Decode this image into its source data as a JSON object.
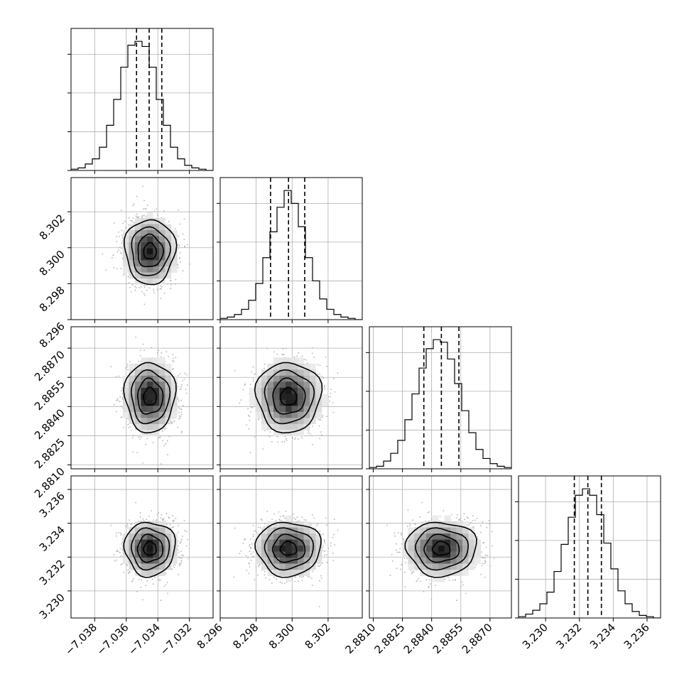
{
  "chart_data": {
    "type": "corner",
    "parameters": [
      {
        "index": 0,
        "range": [
          -7.0395,
          -7.0305
        ],
        "mean": -7.0345,
        "sd": 0.0008,
        "quantiles": [
          -7.03535,
          -7.03455,
          -7.03375
        ],
        "ticks": [
          -7.038,
          -7.036,
          -7.034,
          -7.032
        ],
        "tick_labels": [
          "−7.038",
          "−7.036",
          "−7.034",
          "−7.032"
        ]
      },
      {
        "index": 1,
        "range": [
          8.296,
          8.3039
        ],
        "mean": 8.2998,
        "sd": 0.0009,
        "quantiles": [
          8.2988,
          8.2998,
          8.3007
        ],
        "ticks": [
          8.296,
          8.298,
          8.3,
          8.302
        ],
        "tick_labels": [
          "8.296",
          "8.298",
          "8.300",
          "8.302"
        ]
      },
      {
        "index": 2,
        "range": [
          2.8808,
          2.8881
        ],
        "mean": 2.8845,
        "sd": 0.0009,
        "quantiles": [
          2.8836,
          2.8845,
          2.8854
        ],
        "ticks": [
          2.881,
          2.8825,
          2.884,
          2.8855,
          2.887
        ],
        "tick_labels": [
          "2.8810",
          "2.8825",
          "2.8840",
          "2.8855",
          "2.8870"
        ]
      },
      {
        "index": 3,
        "range": [
          3.2284,
          3.2368
        ],
        "mean": 3.2325,
        "sd": 0.0008,
        "quantiles": [
          3.2317,
          3.2325,
          3.2333
        ],
        "ticks": [
          3.23,
          3.232,
          3.234,
          3.236
        ],
        "tick_labels": [
          "3.230",
          "3.232",
          "3.234",
          "3.236"
        ]
      }
    ],
    "histograms": [
      [
        0.01,
        0.02,
        0.05,
        0.09,
        0.18,
        0.35,
        0.55,
        0.8,
        0.97,
        1.0,
        0.96,
        0.8,
        0.55,
        0.35,
        0.18,
        0.09,
        0.04,
        0.02,
        0.01,
        0.0
      ],
      [
        0.01,
        0.02,
        0.04,
        0.08,
        0.15,
        0.28,
        0.48,
        0.68,
        0.87,
        1.0,
        0.9,
        0.72,
        0.48,
        0.3,
        0.16,
        0.08,
        0.04,
        0.02,
        0.01,
        0.0
      ],
      [
        0.01,
        0.02,
        0.06,
        0.12,
        0.22,
        0.38,
        0.58,
        0.78,
        0.93,
        1.0,
        0.98,
        0.85,
        0.66,
        0.45,
        0.28,
        0.15,
        0.08,
        0.04,
        0.02,
        0.01
      ],
      [
        0.01,
        0.03,
        0.06,
        0.11,
        0.2,
        0.36,
        0.57,
        0.78,
        0.95,
        1.0,
        0.95,
        0.8,
        0.58,
        0.38,
        0.21,
        0.11,
        0.05,
        0.02,
        0.01,
        0.0
      ]
    ],
    "contour_levels_sigma": [
      0.5,
      1.0,
      1.5,
      2.0
    ],
    "grid": true
  }
}
